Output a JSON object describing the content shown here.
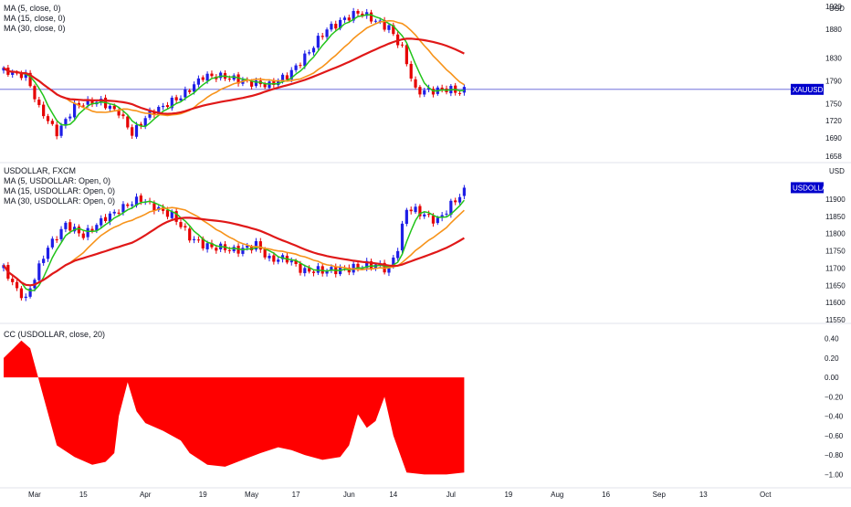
{
  "colors": {
    "up": "#1e1ee6",
    "down": "#e60000",
    "ma5": "#22c41a",
    "ma15": "#f7931a",
    "ma30": "#e01818",
    "cc_fill": "#ff0000",
    "tag_bg": "#0000cc",
    "hline": "#5b5bd6"
  },
  "icons": {
    "unit_badge": "usd-label-icon"
  },
  "chart_data": [
    {
      "type": "candlestick",
      "symbol": "XAUUSD",
      "legend": [
        "MA (5, close, 0)",
        "MA (15, close, 0)",
        "MA (30, close, 0)"
      ],
      "unit_label": "USD",
      "price_tag": "XAUUSD",
      "ylim": [
        1650,
        1925
      ],
      "yticks": [
        1658,
        1690,
        1720,
        1750,
        1790,
        1830,
        1880,
        1920
      ],
      "reference_level": 1775,
      "anchors": [
        [
          0,
          1808
        ],
        [
          5,
          1800
        ],
        [
          8,
          1740
        ],
        [
          12,
          1700
        ],
        [
          16,
          1745
        ],
        [
          22,
          1755
        ],
        [
          26,
          1735
        ],
        [
          29,
          1695
        ],
        [
          33,
          1735
        ],
        [
          40,
          1760
        ],
        [
          45,
          1800
        ],
        [
          55,
          1790
        ],
        [
          60,
          1780
        ],
        [
          64,
          1800
        ],
        [
          69,
          1840
        ],
        [
          73,
          1880
        ],
        [
          77,
          1900
        ],
        [
          80,
          1908
        ],
        [
          84,
          1895
        ],
        [
          87,
          1885
        ],
        [
          90,
          1845
        ],
        [
          93,
          1770
        ],
        [
          96,
          1775
        ],
        [
          100,
          1775
        ],
        [
          103,
          1768
        ],
        [
          104,
          1772
        ]
      ],
      "ma_lengths": [
        5,
        15,
        30
      ]
    },
    {
      "type": "candlestick",
      "symbol": "USDOLLAR",
      "legend": [
        "USDOLLAR, FXCM",
        "MA (5, USDOLLAR: Open, 0)",
        "MA (15, USDOLLAR: Open, 0)",
        "MA (30, USDOLLAR: Open, 0)"
      ],
      "unit_label": "USD",
      "price_tag": "USDOLLAR",
      "ylim": [
        11545,
        11995
      ],
      "yticks": [
        11550,
        11600,
        11650,
        11700,
        11750,
        11800,
        11850,
        11900
      ],
      "anchors": [
        [
          0,
          11700
        ],
        [
          3,
          11640
        ],
        [
          5,
          11610
        ],
        [
          10,
          11760
        ],
        [
          14,
          11830
        ],
        [
          18,
          11790
        ],
        [
          23,
          11850
        ],
        [
          28,
          11880
        ],
        [
          31,
          11900
        ],
        [
          34,
          11880
        ],
        [
          38,
          11850
        ],
        [
          42,
          11790
        ],
        [
          47,
          11760
        ],
        [
          52,
          11750
        ],
        [
          57,
          11770
        ],
        [
          60,
          11720
        ],
        [
          64,
          11730
        ],
        [
          68,
          11690
        ],
        [
          72,
          11690
        ],
        [
          76,
          11700
        ],
        [
          80,
          11700
        ],
        [
          84,
          11710
        ],
        [
          87,
          11700
        ],
        [
          89,
          11760
        ],
        [
          91,
          11870
        ],
        [
          94,
          11860
        ],
        [
          98,
          11840
        ],
        [
          101,
          11880
        ],
        [
          104,
          11920
        ]
      ],
      "ma_lengths": [
        5,
        15,
        30
      ]
    },
    {
      "type": "area",
      "title": "CC (USDOLLAR, close, 20)",
      "ylim": [
        -1.1,
        0.5
      ],
      "yticks": [
        "0.40",
        "0.20",
        "0.00",
        "−0.20",
        "−0.40",
        "−0.60",
        "−0.80",
        "−1.00"
      ],
      "ytick_values": [
        0.4,
        0.2,
        0.0,
        -0.2,
        -0.4,
        -0.6,
        -0.8,
        -1.0
      ],
      "points": [
        [
          0,
          0.2
        ],
        [
          4,
          0.38
        ],
        [
          6,
          0.3
        ],
        [
          9,
          -0.2
        ],
        [
          12,
          -0.7
        ],
        [
          16,
          -0.82
        ],
        [
          20,
          -0.9
        ],
        [
          23,
          -0.87
        ],
        [
          25,
          -0.78
        ],
        [
          26,
          -0.4
        ],
        [
          28,
          -0.05
        ],
        [
          30,
          -0.35
        ],
        [
          32,
          -0.47
        ],
        [
          36,
          -0.55
        ],
        [
          40,
          -0.65
        ],
        [
          42,
          -0.78
        ],
        [
          46,
          -0.9
        ],
        [
          50,
          -0.92
        ],
        [
          54,
          -0.85
        ],
        [
          58,
          -0.78
        ],
        [
          62,
          -0.72
        ],
        [
          65,
          -0.75
        ],
        [
          68,
          -0.8
        ],
        [
          72,
          -0.85
        ],
        [
          76,
          -0.82
        ],
        [
          78,
          -0.7
        ],
        [
          80,
          -0.38
        ],
        [
          82,
          -0.52
        ],
        [
          84,
          -0.45
        ],
        [
          86,
          -0.2
        ],
        [
          88,
          -0.6
        ],
        [
          91,
          -0.98
        ],
        [
          95,
          -1.0
        ],
        [
          100,
          -1.0
        ],
        [
          104,
          -0.98
        ]
      ]
    }
  ],
  "x_axis": {
    "labels": [
      "Mar",
      "15",
      "Apr",
      "19",
      "May",
      "17",
      "Jun",
      "14",
      "Jul",
      "19",
      "Aug",
      "16",
      "Sep",
      "13",
      "Oct"
    ],
    "bar_index": [
      7,
      18,
      32,
      45,
      56,
      66,
      78,
      88,
      101,
      114,
      125,
      136,
      148,
      158,
      172
    ]
  }
}
